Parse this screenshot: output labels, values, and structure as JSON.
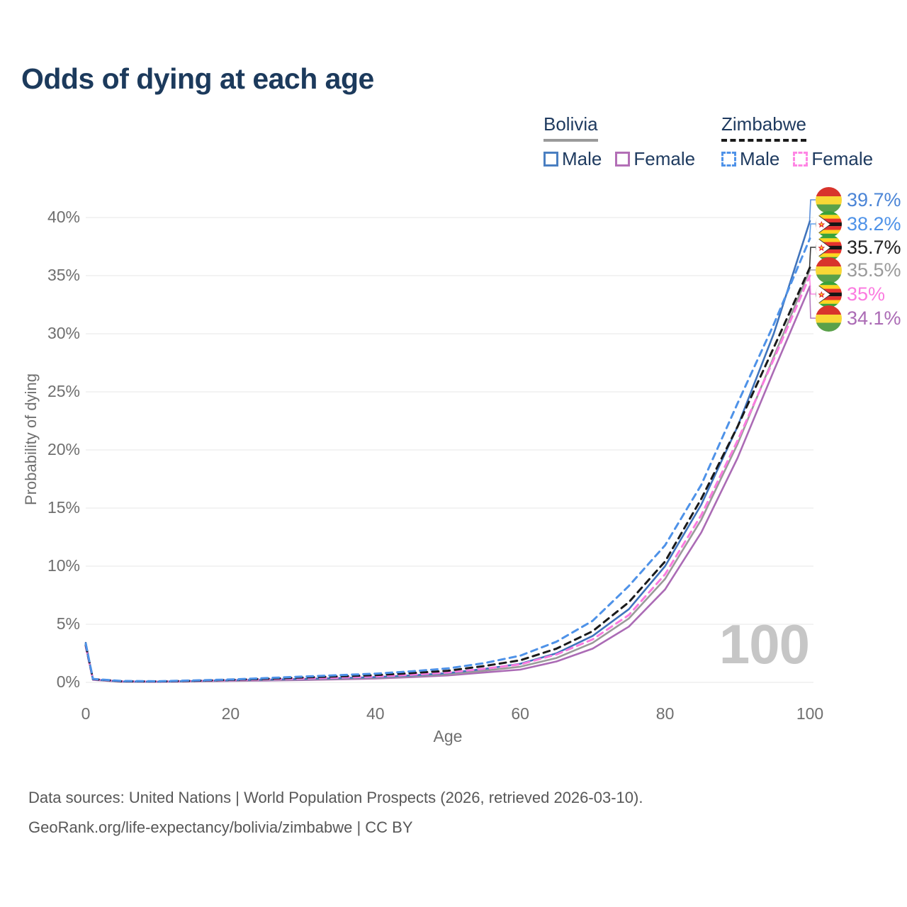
{
  "page": {
    "watermark_age": "100"
  },
  "legend": {
    "groups": [
      {
        "country": "Bolivia",
        "line_style": "solid",
        "line_color": "#9a9a9a",
        "items": [
          {
            "label": "Male",
            "color": "#4a7fc1"
          },
          {
            "label": "Female",
            "color": "#b36fb6"
          }
        ]
      },
      {
        "country": "Zimbabwe",
        "line_style": "dashed",
        "line_color": "#1b1b1b",
        "items": [
          {
            "label": "Male",
            "color": "#4e92e8"
          },
          {
            "label": "Female",
            "color": "#ff85e4"
          }
        ]
      }
    ]
  },
  "footer": {
    "line1": "Data sources: United Nations | World Population Prospects (2026, retrieved 2026-03-10).",
    "line2": "GeoRank.org/life-expectancy/bolivia/zimbabwe | CC BY"
  },
  "chart_data": {
    "type": "line",
    "title": "Odds of dying at each age",
    "xlabel": "Age",
    "ylabel": "Probability of dying",
    "xlim": [
      0,
      100
    ],
    "ylim": [
      0,
      42
    ],
    "grid": "horizontal",
    "legend_position": "top-right",
    "x_ticks": [
      {
        "value": 0,
        "label": "0"
      },
      {
        "value": 20,
        "label": "20"
      },
      {
        "value": 40,
        "label": "40"
      },
      {
        "value": 60,
        "label": "60"
      },
      {
        "value": 80,
        "label": "80"
      },
      {
        "value": 100,
        "label": "100"
      }
    ],
    "y_ticks": [
      {
        "value": 0,
        "label": "0%"
      },
      {
        "value": 5,
        "label": "5%"
      },
      {
        "value": 10,
        "label": "10%"
      },
      {
        "value": 15,
        "label": "15%"
      },
      {
        "value": 20,
        "label": "20%"
      },
      {
        "value": 25,
        "label": "25%"
      },
      {
        "value": 30,
        "label": "30%"
      },
      {
        "value": 35,
        "label": "35%"
      },
      {
        "value": 40,
        "label": "40%"
      }
    ],
    "x": [
      0,
      1,
      5,
      10,
      15,
      20,
      25,
      30,
      35,
      40,
      45,
      50,
      55,
      60,
      65,
      70,
      75,
      80,
      85,
      90,
      95,
      100
    ],
    "series": [
      {
        "id": "bolivia-male",
        "name": "Bolivia Male",
        "flag": "bolivia",
        "dash": "solid",
        "color": "#4074bc",
        "label_color": "#4a84d6",
        "end_label": "39.7%",
        "end_value": 39.7,
        "values": [
          3.4,
          0.25,
          0.08,
          0.06,
          0.12,
          0.18,
          0.24,
          0.3,
          0.37,
          0.45,
          0.6,
          0.8,
          1.15,
          1.6,
          2.5,
          4.0,
          6.3,
          10.0,
          15.3,
          22.0,
          30.0,
          39.7
        ]
      },
      {
        "id": "zimbabwe-male",
        "name": "Zimbabwe Male",
        "flag": "zimbabwe",
        "dash": "dashed",
        "color": "#4e92e8",
        "label_color": "#4e92e8",
        "end_label": "38.2%",
        "end_value": 38.2,
        "values": [
          3.3,
          0.3,
          0.12,
          0.1,
          0.17,
          0.25,
          0.37,
          0.5,
          0.62,
          0.75,
          0.95,
          1.2,
          1.65,
          2.3,
          3.5,
          5.3,
          8.3,
          11.8,
          17.0,
          24.0,
          30.8,
          38.2
        ]
      },
      {
        "id": "zimbabwe-total",
        "name": "Zimbabwe",
        "flag": "zimbabwe",
        "dash": "dashed",
        "color": "#1a1a1a",
        "label_color": "#222222",
        "end_label": "35.7%",
        "end_value": 35.7,
        "values": [
          3.2,
          0.28,
          0.1,
          0.08,
          0.14,
          0.22,
          0.31,
          0.42,
          0.52,
          0.62,
          0.8,
          1.0,
          1.4,
          1.9,
          2.9,
          4.4,
          6.9,
          10.4,
          15.8,
          22.0,
          28.8,
          35.7
        ]
      },
      {
        "id": "bolivia-total",
        "name": "Bolivia",
        "flag": "bolivia",
        "dash": "solid",
        "color": "#9a9a9a",
        "label_color": "#9a9a9a",
        "end_label": "35.5%",
        "end_value": 35.5,
        "values": [
          3.3,
          0.24,
          0.07,
          0.05,
          0.1,
          0.15,
          0.2,
          0.26,
          0.32,
          0.4,
          0.53,
          0.7,
          1.0,
          1.35,
          2.1,
          3.4,
          5.5,
          8.9,
          14.0,
          20.5,
          28.0,
          35.5
        ]
      },
      {
        "id": "zimbabwe-female",
        "name": "Zimbabwe Female",
        "flag": "zimbabwe",
        "dash": "dashed",
        "color": "#fb7be0",
        "label_color": "#fb7be0",
        "end_label": "35%",
        "end_value": 35.0,
        "values": [
          3.1,
          0.26,
          0.09,
          0.07,
          0.12,
          0.19,
          0.26,
          0.33,
          0.41,
          0.5,
          0.66,
          0.85,
          1.17,
          1.55,
          2.4,
          3.7,
          5.8,
          9.3,
          14.4,
          20.8,
          27.8,
          35.0
        ]
      },
      {
        "id": "bolivia-female",
        "name": "Bolivia Female",
        "flag": "bolivia",
        "dash": "solid",
        "color": "#ab6bb5",
        "label_color": "#ab6bb5",
        "end_label": "34.1%",
        "end_value": 34.1,
        "values": [
          3.1,
          0.22,
          0.05,
          0.04,
          0.08,
          0.12,
          0.16,
          0.2,
          0.26,
          0.33,
          0.45,
          0.6,
          0.85,
          1.1,
          1.8,
          2.9,
          4.8,
          8.0,
          12.9,
          19.3,
          26.8,
          34.1
        ]
      }
    ]
  }
}
